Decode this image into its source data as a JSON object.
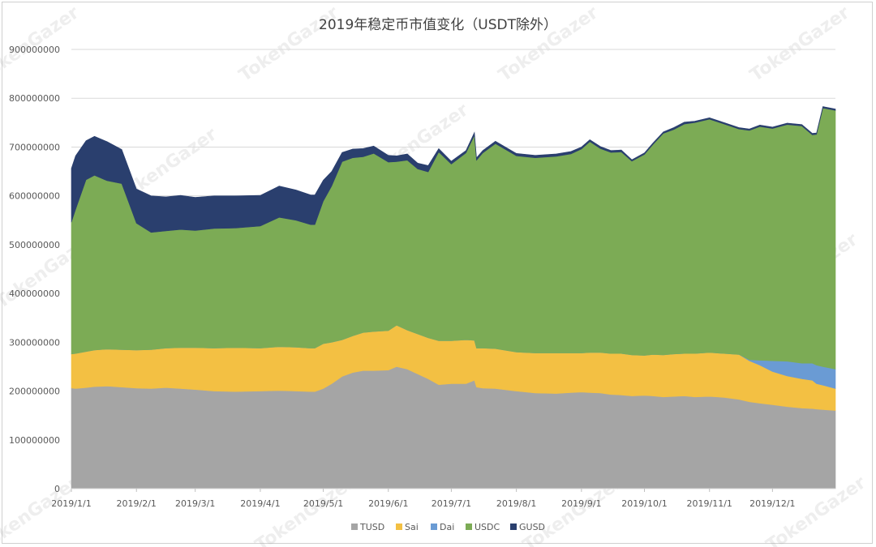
{
  "chart_data": {
    "type": "area",
    "stacked": true,
    "title": "2019年稳定币市值变化（USDT除外）",
    "xlabel": "",
    "ylabel": "",
    "ylim": [
      0,
      900000000
    ],
    "y_ticks": [
      "0",
      "100000000",
      "200000000",
      "300000000",
      "400000000",
      "500000000",
      "600000000",
      "700000000",
      "800000000",
      "900000000"
    ],
    "x_range": [
      "2019-01-01",
      "2019-12-31"
    ],
    "x_ticks": [
      "2019/1/1",
      "2019/2/1",
      "2019/3/1",
      "2019/4/1",
      "2019/5/1",
      "2019/6/1",
      "2019/7/1",
      "2019/8/1",
      "2019/9/1",
      "2019/10/1",
      "2019/11/1",
      "2019/12/1"
    ],
    "grid": true,
    "legend_position": "bottom",
    "dates": [
      "2019-01-01",
      "2019-01-03",
      "2019-01-08",
      "2019-01-12",
      "2019-01-18",
      "2019-01-25",
      "2019-02-01",
      "2019-02-08",
      "2019-02-15",
      "2019-02-22",
      "2019-03-01",
      "2019-03-10",
      "2019-03-20",
      "2019-04-01",
      "2019-04-10",
      "2019-04-18",
      "2019-04-25",
      "2019-04-27",
      "2019-05-01",
      "2019-05-05",
      "2019-05-10",
      "2019-05-15",
      "2019-05-20",
      "2019-05-25",
      "2019-06-01",
      "2019-06-05",
      "2019-06-10",
      "2019-06-15",
      "2019-06-20",
      "2019-06-25",
      "2019-07-01",
      "2019-07-08",
      "2019-07-12",
      "2019-07-13",
      "2019-07-16",
      "2019-07-22",
      "2019-08-01",
      "2019-08-10",
      "2019-08-20",
      "2019-08-27",
      "2019-09-01",
      "2019-09-05",
      "2019-09-10",
      "2019-09-15",
      "2019-09-20",
      "2019-09-25",
      "2019-10-01",
      "2019-10-05",
      "2019-10-10",
      "2019-10-15",
      "2019-10-20",
      "2019-10-25",
      "2019-11-01",
      "2019-11-08",
      "2019-11-15",
      "2019-11-20",
      "2019-11-25",
      "2019-12-01",
      "2019-12-08",
      "2019-12-15",
      "2019-12-20",
      "2019-12-22",
      "2019-12-25",
      "2019-12-31"
    ],
    "series": [
      {
        "name": "TUSD",
        "color": "#a5a5a5",
        "values": [
          206000000,
          205000000,
          207000000,
          209000000,
          210000000,
          208000000,
          206000000,
          205000000,
          207000000,
          205000000,
          203000000,
          200000000,
          199000000,
          200000000,
          201000000,
          200000000,
          199000000,
          199000000,
          205000000,
          215000000,
          230000000,
          238000000,
          242000000,
          242000000,
          243000000,
          250000000,
          245000000,
          235000000,
          225000000,
          213000000,
          215000000,
          215000000,
          222000000,
          208000000,
          206000000,
          205000000,
          200000000,
          196000000,
          195000000,
          197000000,
          198000000,
          197000000,
          196000000,
          193000000,
          192000000,
          190000000,
          191000000,
          190000000,
          188000000,
          189000000,
          190000000,
          188000000,
          189000000,
          187000000,
          183000000,
          178000000,
          175000000,
          172000000,
          168000000,
          165000000,
          164000000,
          163000000,
          162000000,
          160000000
        ]
      },
      {
        "name": "Sai",
        "color": "#f3c043",
        "values": [
          70000000,
          72000000,
          74000000,
          75000000,
          76000000,
          77000000,
          78000000,
          80000000,
          81000000,
          84000000,
          86000000,
          88000000,
          90000000,
          88000000,
          90000000,
          90000000,
          89000000,
          89000000,
          92000000,
          85000000,
          75000000,
          75000000,
          78000000,
          80000000,
          81000000,
          85000000,
          80000000,
          82000000,
          84000000,
          90000000,
          88000000,
          90000000,
          82000000,
          80000000,
          82000000,
          82000000,
          80000000,
          82000000,
          83000000,
          81000000,
          80000000,
          82000000,
          83000000,
          84000000,
          85000000,
          84000000,
          82000000,
          85000000,
          86000000,
          87000000,
          87000000,
          89000000,
          90000000,
          90000000,
          92000000,
          84000000,
          78000000,
          68000000,
          63000000,
          60000000,
          58000000,
          52000000,
          50000000,
          45000000
        ]
      },
      {
        "name": "Dai",
        "color": "#6a9bd4",
        "values": [
          0,
          0,
          0,
          0,
          0,
          0,
          0,
          0,
          0,
          0,
          0,
          0,
          0,
          0,
          0,
          0,
          0,
          0,
          0,
          0,
          0,
          0,
          0,
          0,
          0,
          0,
          0,
          0,
          0,
          0,
          0,
          0,
          0,
          0,
          0,
          0,
          0,
          0,
          0,
          0,
          0,
          0,
          0,
          0,
          0,
          0,
          0,
          0,
          0,
          0,
          0,
          0,
          0,
          0,
          0,
          2000000,
          10000000,
          22000000,
          30000000,
          32000000,
          35000000,
          38000000,
          38000000,
          40000000
        ]
      },
      {
        "name": "USDC",
        "color": "#7cab55",
        "values": [
          270000000,
          295000000,
          352000000,
          358000000,
          345000000,
          340000000,
          260000000,
          240000000,
          240000000,
          242000000,
          240000000,
          245000000,
          245000000,
          250000000,
          265000000,
          260000000,
          253000000,
          253000000,
          292000000,
          320000000,
          365000000,
          365000000,
          360000000,
          365000000,
          345000000,
          335000000,
          348000000,
          338000000,
          340000000,
          387000000,
          362000000,
          383000000,
          420000000,
          385000000,
          400000000,
          420000000,
          402000000,
          400000000,
          403000000,
          408000000,
          418000000,
          432000000,
          418000000,
          412000000,
          413000000,
          397000000,
          412000000,
          430000000,
          454000000,
          460000000,
          470000000,
          473000000,
          478000000,
          470000000,
          462000000,
          470000000,
          479000000,
          476000000,
          485000000,
          486000000,
          468000000,
          473000000,
          530000000,
          530000000
        ]
      },
      {
        "name": "GUSD",
        "color": "#2a3f6e",
        "values": [
          110000000,
          110000000,
          80000000,
          80000000,
          80000000,
          70000000,
          70000000,
          75000000,
          70000000,
          70000000,
          68000000,
          67000000,
          66000000,
          63000000,
          64000000,
          62000000,
          61000000,
          61000000,
          43000000,
          30000000,
          19000000,
          18000000,
          17000000,
          15000000,
          14000000,
          12000000,
          13000000,
          12000000,
          13000000,
          7000000,
          6000000,
          5000000,
          6000000,
          5000000,
          5000000,
          5000000,
          5000000,
          5000000,
          5000000,
          5000000,
          4000000,
          4000000,
          4000000,
          4000000,
          4000000,
          3000000,
          3000000,
          3000000,
          3000000,
          4000000,
          4000000,
          3000000,
          3000000,
          3000000,
          3000000,
          3000000,
          3000000,
          3000000,
          3000000,
          3000000,
          3000000,
          3000000,
          3000000,
          3000000
        ]
      }
    ],
    "watermark": "TokenGazer"
  }
}
